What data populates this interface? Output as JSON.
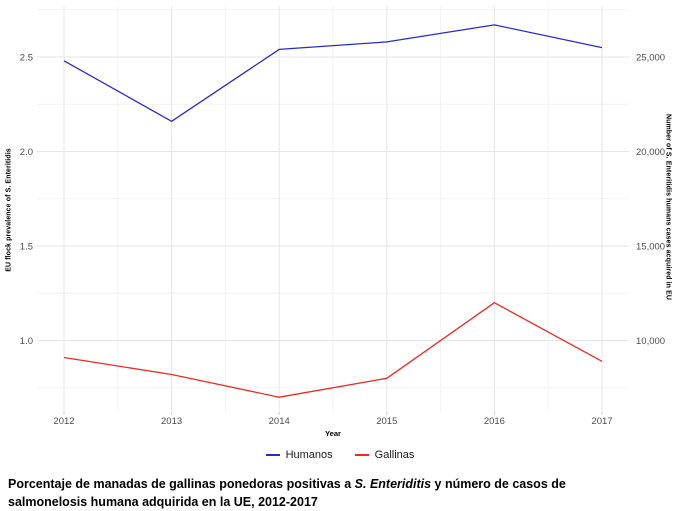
{
  "chart_data": {
    "type": "line",
    "title": "",
    "x": [
      2012,
      2013,
      2014,
      2015,
      2016,
      2017
    ],
    "x_tick_labels": [
      "2012",
      "2013",
      "2014",
      "2015",
      "2016",
      "2017"
    ],
    "xlabel": "Year",
    "grid": true,
    "legend_position": "bottom",
    "left_axis": {
      "label": "EU flock prevalence of S. Enteritidis",
      "tick_values": [
        1.0,
        1.5,
        2.0,
        2.5
      ],
      "tick_labels": [
        "1.0",
        "1.5",
        "2.0",
        "2.5"
      ],
      "range": [
        0.62,
        2.77
      ]
    },
    "right_axis": {
      "label": "Number of S. Enteritidis humans cases acquired in EU",
      "tick_values": [
        10000,
        15000,
        20000,
        25000
      ],
      "tick_labels": [
        "10,000",
        "15,000",
        "20,000",
        "25,000"
      ],
      "range": [
        6200,
        27700
      ],
      "right_per_left_unit": 10000
    },
    "series": [
      {
        "name": "Humanos",
        "axis": "right",
        "color": "#2B2BCC",
        "values": [
          24800,
          21600,
          25400,
          25800,
          26700,
          25500
        ]
      },
      {
        "name": "Gallinas",
        "axis": "left",
        "color": "#EE2A22",
        "values": [
          0.91,
          0.82,
          0.7,
          0.8,
          1.2,
          0.89
        ]
      }
    ]
  },
  "caption": {
    "line1_pre": "Porcentaje de manadas de gallinas ponedoras positivas a ",
    "line1_italic": "S. Enteriditis",
    "line1_post": " y número de casos de",
    "line2": "salmonelosis humana adquirida en la UE, 2012-2017"
  }
}
